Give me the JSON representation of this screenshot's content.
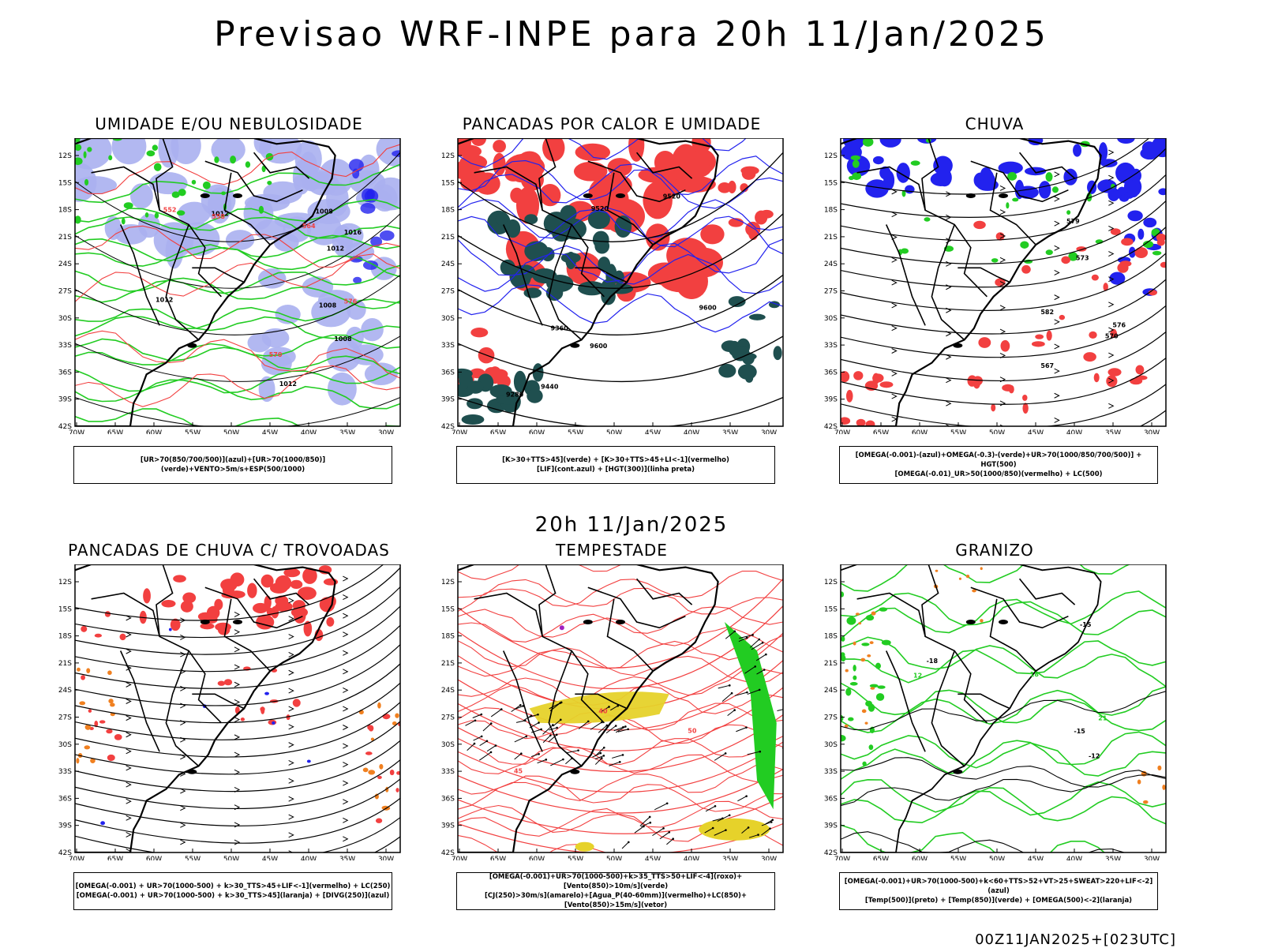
{
  "header": {
    "title": "Previsao WRF-INPE  para 20h 11/Jan/2025",
    "mid_title": "20h 11/Jan/2025",
    "footer": "00Z11JAN2025+[023UTC]"
  },
  "axes": {
    "lat_labels": [
      "12S",
      "15S",
      "18S",
      "21S",
      "24S",
      "27S",
      "30S",
      "33S",
      "36S",
      "39S",
      "42S"
    ],
    "lon_labels": [
      "70W",
      "65W",
      "60W",
      "55W",
      "50W",
      "45W",
      "40W",
      "35W",
      "30W"
    ]
  },
  "panels": [
    {
      "title": "UMIDADE E/OU NEBULOSIDADE",
      "caption_lines": [
        "[UR>70(850/700/500)](azul)+[UR>70(1000/850)](verde)+VENTO>5m/s+ESP(500/1000)"
      ],
      "contour_labels": [
        "1008",
        "1008",
        "1008",
        "1012",
        "1012",
        "1012",
        "1016",
        "1012",
        "576",
        "570",
        "564",
        "558",
        "552"
      ]
    },
    {
      "title": "PANCADAS POR CALOR E UMIDADE",
      "caption_lines": [
        "[K>30+TTS>45](verde) + [K>30+TTS>45+LI<-1](vermelho)",
        "[LIF](cont.azul) + [HGT(300)](linha preta)"
      ],
      "contour_labels": [
        "9600",
        "9520",
        "9440",
        "9360",
        "9280",
        "9520",
        "9600"
      ]
    },
    {
      "title": "CHUVA",
      "caption_lines": [
        "[OMEGA(-0.001)-(azul)+OMEGA(-0.3)-(verde)+UR>70(1000/850/700/500)] + HGT(500)",
        "[OMEGA(-0.01)_UR>50(1000/850)(vermelho) + LC(500)"
      ],
      "contour_labels": [
        "582",
        "576",
        "573",
        "570",
        "567",
        "579"
      ]
    },
    {
      "title": "PANCADAS DE CHUVA C/ TROVOADAS",
      "caption_lines": [
        "[OMEGA(-0.001) + UR>70(1000-500) + k>30_TTS>45+LIF<-1](vermelho) + LC(250)",
        "[OMEGA(-0.001) + UR>70(1000-500) + k>30_TTS>45](laranja) + [DIVG(250)](azul)"
      ],
      "contour_labels": []
    },
    {
      "title": "TEMPESTADE",
      "caption_lines": [
        "[OMEGA(-0.001)+UR>70(1000-500)+k>35_TTS>50+LIF<-4](roxo)+[Vento(850)>10m/s](verde)",
        "[CJ(250)>30m/s](amarelo)+[Agua_P(40-60mm)](vermelho)+LC(850)+[Vento(850)>15m/s](vetor)"
      ],
      "contour_labels": [
        "40",
        "45",
        "50"
      ]
    },
    {
      "title": "GRANIZO",
      "caption_lines": [
        "[OMEGA(-0.001)+UR>70(1000-500)+k<60+TTS>52+VT>25+SWEAT>220+LIF<-2](azul)",
        "[Temp(500)](preto) + [Temp(850)](verde) + [OMEGA(500)<-2](laranja)"
      ],
      "contour_labels": [
        "-12",
        "-15",
        "-18",
        "-15",
        "21",
        "18",
        "12"
      ]
    }
  ],
  "colors": {
    "red": "#f24040",
    "green": "#22cc22",
    "blue": "#2222ee",
    "lavender": "#aab0f0",
    "darkteal": "#1f4f4f",
    "yellow": "#e6d22a",
    "orange": "#f08020",
    "purple": "#a020c0"
  }
}
